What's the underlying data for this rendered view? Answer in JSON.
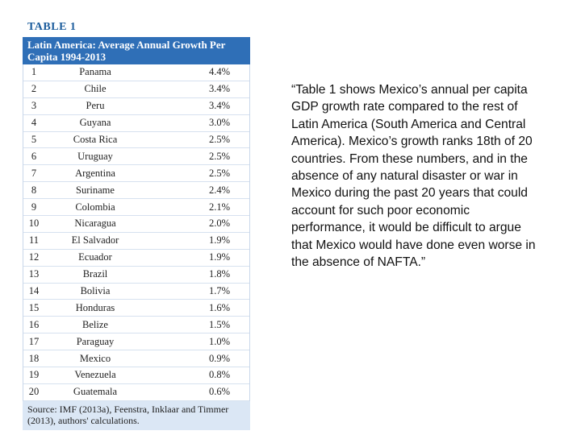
{
  "table": {
    "label": "TABLE 1",
    "title": "Latin America: Average Annual Growth Per Capita 1994-2013",
    "rows": [
      {
        "rank": "1",
        "country": "Panama",
        "growth": "4.4%"
      },
      {
        "rank": "2",
        "country": "Chile",
        "growth": "3.4%"
      },
      {
        "rank": "3",
        "country": "Peru",
        "growth": "3.4%"
      },
      {
        "rank": "4",
        "country": "Guyana",
        "growth": "3.0%"
      },
      {
        "rank": "5",
        "country": "Costa Rica",
        "growth": "2.5%"
      },
      {
        "rank": "6",
        "country": "Uruguay",
        "growth": "2.5%"
      },
      {
        "rank": "7",
        "country": "Argentina",
        "growth": "2.5%"
      },
      {
        "rank": "8",
        "country": "Suriname",
        "growth": "2.4%"
      },
      {
        "rank": "9",
        "country": "Colombia",
        "growth": "2.1%"
      },
      {
        "rank": "10",
        "country": "Nicaragua",
        "growth": "2.0%"
      },
      {
        "rank": "11",
        "country": "El Salvador",
        "growth": "1.9%"
      },
      {
        "rank": "12",
        "country": "Ecuador",
        "growth": "1.9%"
      },
      {
        "rank": "13",
        "country": "Brazil",
        "growth": "1.8%"
      },
      {
        "rank": "14",
        "country": "Bolivia",
        "growth": "1.7%"
      },
      {
        "rank": "15",
        "country": "Honduras",
        "growth": "1.6%"
      },
      {
        "rank": "16",
        "country": "Belize",
        "growth": "1.5%"
      },
      {
        "rank": "17",
        "country": "Paraguay",
        "growth": "1.0%"
      },
      {
        "rank": "18",
        "country": "Mexico",
        "growth": "0.9%"
      },
      {
        "rank": "19",
        "country": "Venezuela",
        "growth": "0.8%"
      },
      {
        "rank": "20",
        "country": "Guatemala",
        "growth": "0.6%"
      }
    ],
    "source": "Source: IMF (2013a), Feenstra, Inklaar and Timmer (2013), authors' calculations."
  },
  "quote": "“Table 1 shows Mexico’s annual per capita GDP growth rate compared to the rest of Latin America (South America and Central America). Mexico’s growth ranks 18th of 20 countries. From these numbers, and in the absence of any natural disaster or war in Mexico during the past 20 years that could account for such poor economic performance, it would be difficult to argue that Mexico would have done even worse in the absence of NAFTA.”",
  "colors": {
    "header_blue": "#2f6fb7",
    "source_bg": "#dbe7f5",
    "label_blue": "#1b5c9c"
  }
}
